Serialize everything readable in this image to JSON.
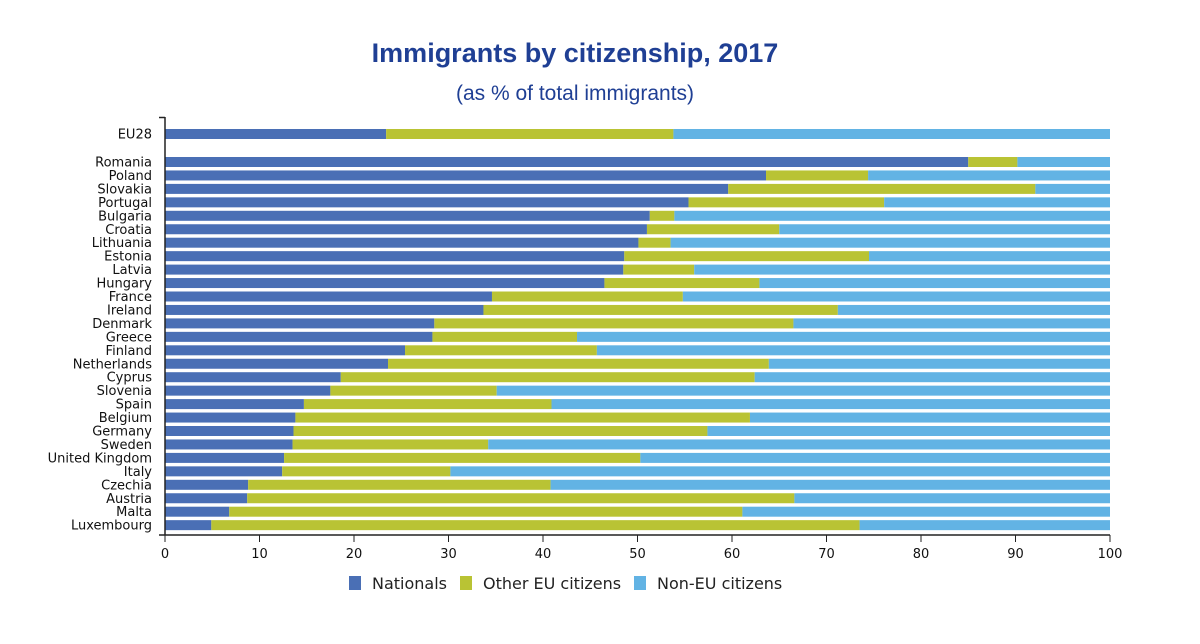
{
  "chart_data": {
    "type": "bar",
    "orientation": "horizontal",
    "stacked": true,
    "title": "Immigrants by citizenship, 2017",
    "subtitle": "(as % of total immigrants)",
    "xlabel": "",
    "ylabel": "",
    "xlim": [
      0,
      100
    ],
    "xticks": [
      0,
      10,
      20,
      30,
      40,
      50,
      60,
      70,
      80,
      90,
      100
    ],
    "grid": false,
    "legend_position": "bottom-center",
    "aggregate_category": "EU28",
    "categories": [
      "EU28",
      "Romania",
      "Poland",
      "Slovakia",
      "Portugal",
      "Bulgaria",
      "Croatia",
      "Lithuania",
      "Estonia",
      "Latvia",
      "Hungary",
      "France",
      "Ireland",
      "Denmark",
      "Greece",
      "Finland",
      "Netherlands",
      "Cyprus",
      "Slovenia",
      "Spain",
      "Belgium",
      "Germany",
      "Sweden",
      "United Kingdom",
      "Italy",
      "Czechia",
      "Austria",
      "Malta",
      "Luxembourg"
    ],
    "series": [
      {
        "name": "Nationals",
        "color": "#4a6fb5",
        "values": [
          23.4,
          85.0,
          63.6,
          59.6,
          55.4,
          51.3,
          51.0,
          50.1,
          48.6,
          48.5,
          46.5,
          34.6,
          33.7,
          28.5,
          28.3,
          25.4,
          23.6,
          18.6,
          17.5,
          14.7,
          13.8,
          13.6,
          13.5,
          12.6,
          12.4,
          8.8,
          8.7,
          6.8,
          4.9
        ]
      },
      {
        "name": "Other EU citizens",
        "color": "#b9c334",
        "values": [
          30.4,
          5.2,
          10.8,
          32.5,
          20.7,
          2.6,
          14.0,
          3.4,
          25.9,
          7.5,
          16.4,
          20.2,
          37.5,
          38.0,
          15.3,
          20.3,
          40.3,
          43.8,
          17.6,
          26.2,
          48.1,
          43.8,
          20.7,
          37.7,
          17.8,
          32.0,
          57.9,
          54.3,
          68.6
        ]
      },
      {
        "name": "Non-EU citizens",
        "color": "#62b3e4",
        "values": [
          46.2,
          9.8,
          25.6,
          7.9,
          23.9,
          46.1,
          35.0,
          46.5,
          25.5,
          44.0,
          37.1,
          45.2,
          28.8,
          33.5,
          56.4,
          54.3,
          36.1,
          37.6,
          64.9,
          59.1,
          38.1,
          42.6,
          65.8,
          49.7,
          69.8,
          59.2,
          33.4,
          38.9,
          26.5
        ]
      }
    ]
  }
}
